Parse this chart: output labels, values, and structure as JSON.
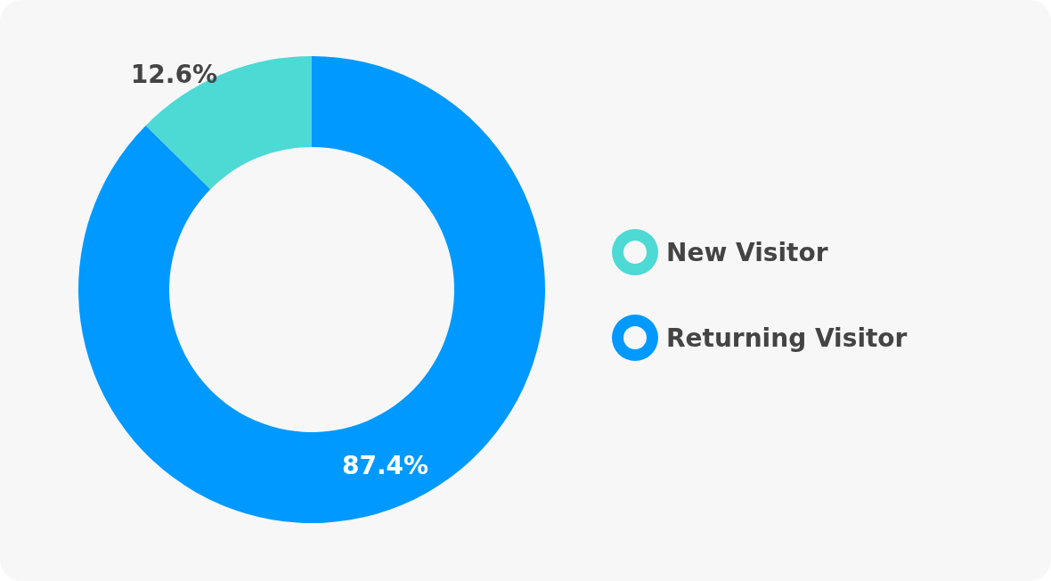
{
  "chart_data": {
    "type": "donut",
    "categories": [
      "New Visitor",
      "Returning Visitor"
    ],
    "values": [
      12.6,
      87.4
    ],
    "colors": [
      "#4dd9d4",
      "#0099ff"
    ],
    "value_labels": [
      "12.6%",
      "87.4%"
    ],
    "legend": "right"
  }
}
